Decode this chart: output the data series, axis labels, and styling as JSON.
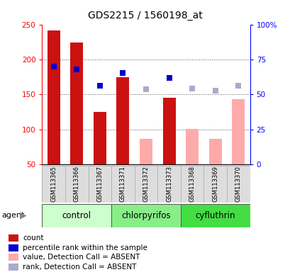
{
  "title": "GDS2215 / 1560198_at",
  "samples": [
    "GSM113365",
    "GSM113366",
    "GSM113367",
    "GSM113371",
    "GSM113372",
    "GSM113373",
    "GSM113368",
    "GSM113369",
    "GSM113370"
  ],
  "groups": [
    {
      "label": "control",
      "indices": [
        0,
        1,
        2
      ],
      "color": "#ccffcc"
    },
    {
      "label": "chlorpyrifos",
      "indices": [
        3,
        4,
        5
      ],
      "color": "#88ee88"
    },
    {
      "label": "cyfluthrin",
      "indices": [
        6,
        7,
        8
      ],
      "color": "#44dd44"
    }
  ],
  "red_bars": [
    241,
    224,
    125,
    175,
    null,
    145,
    null,
    null,
    null
  ],
  "pink_bars": [
    null,
    null,
    null,
    null,
    87,
    null,
    101,
    87,
    143
  ],
  "blue_squares": [
    190,
    186,
    163,
    181,
    null,
    174,
    null,
    null,
    null
  ],
  "lightblue_squares": [
    null,
    null,
    null,
    null,
    158,
    null,
    159,
    155,
    163
  ],
  "ylim_left": [
    50,
    250
  ],
  "ylim_right": [
    0,
    100
  ],
  "yticks_left": [
    50,
    100,
    150,
    200,
    250
  ],
  "yticks_right": [
    0,
    25,
    50,
    75,
    100
  ],
  "ytick_labels_right": [
    "0",
    "25",
    "50",
    "75",
    "100%"
  ],
  "bar_width": 0.55,
  "red_color": "#cc1111",
  "pink_color": "#ffaaaa",
  "blue_color": "#0000cc",
  "lightblue_color": "#aaaacc",
  "grid_color": "#555555",
  "legend_items": [
    {
      "color": "#cc1111",
      "label": "count"
    },
    {
      "color": "#0000cc",
      "label": "percentile rank within the sample"
    },
    {
      "color": "#ffaaaa",
      "label": "value, Detection Call = ABSENT"
    },
    {
      "color": "#aaaacc",
      "label": "rank, Detection Call = ABSENT"
    }
  ],
  "title_fontsize": 10,
  "tick_fontsize": 7.5,
  "sample_fontsize": 6,
  "group_label_fontsize": 8.5,
  "agent_fontsize": 8,
  "legend_fontsize": 7.5
}
